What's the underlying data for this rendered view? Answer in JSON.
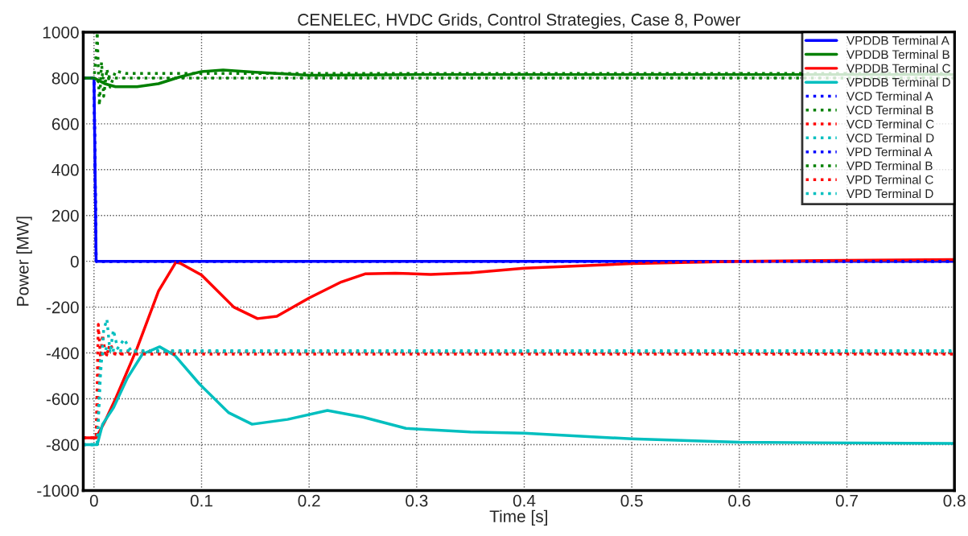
{
  "chart_data": {
    "type": "line",
    "title": "CENELEC, HVDC Grids, Control Strategies, Case 8, Power",
    "xlabel": "Time [s]",
    "ylabel": "Power [MW]",
    "xlim": [
      -0.01,
      0.8
    ],
    "ylim": [
      -1000,
      1000
    ],
    "xticks": [
      0,
      0.1,
      0.2,
      0.3,
      0.4,
      0.5,
      0.6,
      0.7,
      0.8
    ],
    "yticks": [
      -1000,
      -800,
      -600,
      -400,
      -200,
      0,
      200,
      400,
      600,
      800,
      1000
    ],
    "grid": true,
    "legend": "top right",
    "marker": "none",
    "series": [
      {
        "name": "VPDDB Terminal A",
        "color": "#0000ff",
        "line_style": "solid",
        "x": [
          -0.01,
          0,
          0.001,
          0.002,
          0.8
        ],
        "values": [
          800,
          800,
          400,
          0,
          0
        ]
      },
      {
        "name": "VPDDB Terminal B",
        "color": "#008000",
        "line_style": "solid",
        "x": [
          -0.01,
          0,
          0.01,
          0.02,
          0.04,
          0.06,
          0.08,
          0.1,
          0.12,
          0.15,
          0.2,
          0.3,
          0.8
        ],
        "values": [
          800,
          800,
          775,
          762,
          762,
          775,
          805,
          828,
          835,
          825,
          812,
          815,
          815
        ]
      },
      {
        "name": "VPDDB Terminal C",
        "color": "#ff0000",
        "line_style": "solid",
        "x": [
          -0.01,
          0.002,
          0.01,
          0.02,
          0.04,
          0.06,
          0.076,
          0.08,
          0.1,
          0.13,
          0.152,
          0.17,
          0.2,
          0.23,
          0.252,
          0.28,
          0.313,
          0.35,
          0.4,
          0.5,
          0.6,
          0.8
        ],
        "values": [
          -770,
          -770,
          -700,
          -600,
          -380,
          -130,
          -5,
          -8,
          -60,
          -200,
          -250,
          -240,
          -160,
          -90,
          -55,
          -52,
          -57,
          -50,
          -30,
          -10,
          0,
          8
        ]
      },
      {
        "name": "VPDDB Terminal D",
        "color": "#00bfbf",
        "line_style": "solid",
        "x": [
          -0.01,
          0.003,
          0.008,
          0.018,
          0.031,
          0.045,
          0.061,
          0.075,
          0.098,
          0.125,
          0.147,
          0.18,
          0.217,
          0.25,
          0.29,
          0.35,
          0.4,
          0.5,
          0.6,
          0.8
        ],
        "values": [
          -800,
          -800,
          -711,
          -640,
          -510,
          -405,
          -373,
          -410,
          -535,
          -660,
          -711,
          -690,
          -651,
          -680,
          -729,
          -745,
          -750,
          -775,
          -790,
          -795
        ]
      },
      {
        "name": "VCD Terminal A",
        "color": "#0000ff",
        "line_style": "dotted",
        "x": [
          -0.01,
          0,
          0.001,
          0.002,
          0.8
        ],
        "values": [
          800,
          800,
          400,
          0,
          0
        ]
      },
      {
        "name": "VCD Terminal B",
        "color": "#008000",
        "line_style": "dotted",
        "x": [
          -0.01,
          0,
          0.002,
          0.003,
          0.005,
          0.007,
          0.009,
          0.012,
          0.015,
          0.02,
          0.03,
          0.8
        ],
        "values": [
          800,
          800,
          900,
          1000,
          680,
          870,
          720,
          840,
          760,
          830,
          820,
          820
        ]
      },
      {
        "name": "VCD Terminal C",
        "color": "#ff0000",
        "line_style": "dotted",
        "x": [
          -0.01,
          0.002,
          0.004,
          0.006,
          0.008,
          0.011,
          0.015,
          0.02,
          0.03,
          0.8
        ],
        "values": [
          -770,
          -770,
          -275,
          -420,
          -320,
          -420,
          -360,
          -410,
          -395,
          -400
        ]
      },
      {
        "name": "VCD Terminal D",
        "color": "#00bfbf",
        "line_style": "dotted",
        "x": [
          -0.01,
          0.003,
          0.006,
          0.009,
          0.012,
          0.015,
          0.018,
          0.022,
          0.028,
          0.035,
          0.8
        ],
        "values": [
          -800,
          -800,
          -500,
          -300,
          -253,
          -400,
          -300,
          -380,
          -340,
          -395,
          -395
        ]
      },
      {
        "name": "VPD Terminal A",
        "color": "#0000ff",
        "line_style": "dotted",
        "x": [
          -0.01,
          0,
          0.001,
          0.002,
          0.8
        ],
        "values": [
          800,
          800,
          400,
          0,
          0
        ]
      },
      {
        "name": "VPD Terminal B",
        "color": "#008000",
        "line_style": "dotted",
        "x": [
          -0.01,
          0,
          0.005,
          0.01,
          0.02,
          0.8
        ],
        "values": [
          800,
          800,
          780,
          810,
          800,
          800
        ]
      },
      {
        "name": "VPD Terminal C",
        "color": "#ff0000",
        "line_style": "dotted",
        "x": [
          -0.01,
          0.002,
          0.005,
          0.01,
          0.02,
          0.8
        ],
        "values": [
          -770,
          -770,
          -420,
          -390,
          -405,
          -405
        ]
      },
      {
        "name": "VPD Terminal D",
        "color": "#00bfbf",
        "line_style": "dotted",
        "x": [
          -0.01,
          0.003,
          0.006,
          0.01,
          0.02,
          0.8
        ],
        "values": [
          -800,
          -800,
          -430,
          -380,
          -390,
          -390
        ]
      }
    ]
  }
}
